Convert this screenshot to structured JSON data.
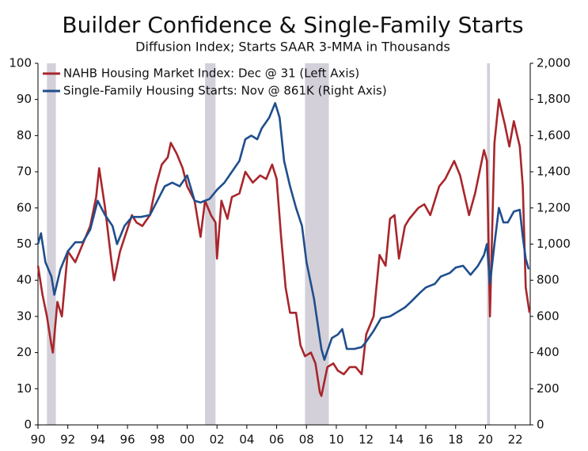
{
  "chart_data": {
    "type": "line",
    "title": "Builder Confidence & Single-Family Starts",
    "subtitle": "Diffusion Index; Starts SAAR 3-MMA in Thousands",
    "xlim": [
      1990,
      2023
    ],
    "xticks": [
      {
        "value": 1990,
        "label": "90"
      },
      {
        "value": 1992,
        "label": "92"
      },
      {
        "value": 1994,
        "label": "94"
      },
      {
        "value": 1996,
        "label": "96"
      },
      {
        "value": 1998,
        "label": "98"
      },
      {
        "value": 2000,
        "label": "00"
      },
      {
        "value": 2002,
        "label": "02"
      },
      {
        "value": 2004,
        "label": "04"
      },
      {
        "value": 2006,
        "label": "06"
      },
      {
        "value": 2008,
        "label": "08"
      },
      {
        "value": 2010,
        "label": "10"
      },
      {
        "value": 2012,
        "label": "12"
      },
      {
        "value": 2014,
        "label": "14"
      },
      {
        "value": 2016,
        "label": "16"
      },
      {
        "value": 2018,
        "label": "18"
      },
      {
        "value": 2020,
        "label": "20"
      },
      {
        "value": 2022,
        "label": "22"
      }
    ],
    "ylim": [
      0,
      100
    ],
    "yticks": [
      0,
      10,
      20,
      30,
      40,
      50,
      60,
      70,
      80,
      90,
      100
    ],
    "y2lim": [
      0,
      2000
    ],
    "y2ticks": [
      0,
      {
        "value": 200,
        "label": "200"
      },
      {
        "value": 400,
        "label": "400"
      },
      {
        "value": 600,
        "label": "600"
      },
      {
        "value": 800,
        "label": "800"
      },
      {
        "value": 1000,
        "label": "1,000"
      },
      {
        "value": 1200,
        "label": "1,200"
      },
      {
        "value": 1400,
        "label": "1,400"
      },
      {
        "value": 1600,
        "label": "1,600"
      },
      {
        "value": 1800,
        "label": "1,800"
      },
      {
        "value": 2000,
        "label": "2,000"
      }
    ],
    "shaded_periods": [
      {
        "start": 1990.6,
        "end": 1991.2
      },
      {
        "start": 2001.2,
        "end": 2001.9
      },
      {
        "start": 2007.9,
        "end": 2009.5
      },
      {
        "start": 2020.1,
        "end": 2020.3
      }
    ],
    "shade_color": "#d3d0da",
    "legend": "upper left",
    "series": [
      {
        "name": "NAHB Housing Market Index: Dec @ 31 (Left Axis)",
        "color": "#a8262b",
        "axis": "y",
        "x": [
          1990.0,
          1990.3,
          1990.6,
          1990.9,
          1991.0,
          1991.3,
          1991.6,
          1992.0,
          1992.5,
          1993.0,
          1993.5,
          1993.9,
          1994.1,
          1994.5,
          1994.9,
          1995.1,
          1995.5,
          1995.9,
          1996.3,
          1996.6,
          1997.0,
          1997.5,
          1997.9,
          1998.3,
          1998.7,
          1998.9,
          1999.3,
          1999.7,
          2000.0,
          2000.5,
          2000.9,
          2001.2,
          2001.6,
          2001.9,
          2002.0,
          2002.3,
          2002.7,
          2003.0,
          2003.5,
          2003.9,
          2004.4,
          2004.9,
          2005.3,
          2005.7,
          2006.0,
          2006.3,
          2006.6,
          2006.9,
          2007.3,
          2007.6,
          2007.9,
          2008.3,
          2008.6,
          2008.9,
          2009.0,
          2009.4,
          2009.8,
          2010.1,
          2010.5,
          2010.9,
          2011.3,
          2011.7,
          2012.0,
          2012.5,
          2012.9,
          2013.3,
          2013.6,
          2013.9,
          2014.2,
          2014.6,
          2014.9,
          2015.5,
          2015.9,
          2016.3,
          2016.9,
          2017.3,
          2017.9,
          2018.3,
          2018.9,
          2019.3,
          2019.9,
          2020.1,
          2020.3,
          2020.6,
          2020.9,
          2021.3,
          2021.6,
          2021.9,
          2022.3,
          2022.5,
          2022.7,
          2022.95
        ],
        "values": [
          44,
          36,
          30,
          22,
          20,
          34,
          30,
          48,
          45,
          50,
          55,
          63,
          71,
          60,
          46,
          40,
          48,
          53,
          58,
          56,
          55,
          58,
          66,
          72,
          74,
          78,
          75,
          71,
          66,
          62,
          52,
          62,
          58,
          56,
          46,
          62,
          57,
          63,
          64,
          70,
          67,
          69,
          68,
          72,
          68,
          52,
          38,
          31,
          31,
          22,
          19,
          20,
          17,
          9,
          8,
          16,
          17,
          15,
          14,
          16,
          16,
          14,
          25,
          30,
          47,
          44,
          57,
          58,
          46,
          55,
          57,
          60,
          61,
          58,
          66,
          68,
          73,
          69,
          58,
          64,
          76,
          73,
          30,
          78,
          90,
          83,
          77,
          84,
          77,
          66,
          38,
          31
        ]
      },
      {
        "name": "Single-Family Housing Starts: Nov @ 861K (Right Axis)",
        "color": "#1f4e8c",
        "axis": "y2",
        "x": [
          1990.0,
          1990.2,
          1990.5,
          1990.9,
          1991.1,
          1991.5,
          1992.0,
          1992.5,
          1993.0,
          1993.5,
          1994.0,
          1994.5,
          1995.0,
          1995.3,
          1995.8,
          1996.3,
          1996.9,
          1997.5,
          1998.0,
          1998.5,
          1999.0,
          1999.5,
          2000.0,
          2000.5,
          2000.9,
          2001.5,
          2002.0,
          2002.5,
          2003.0,
          2003.5,
          2003.9,
          2004.3,
          2004.7,
          2005.0,
          2005.5,
          2005.9,
          2006.2,
          2006.5,
          2006.9,
          2007.3,
          2007.7,
          2008.0,
          2008.5,
          2009.0,
          2009.2,
          2009.7,
          2010.1,
          2010.4,
          2010.7,
          2011.2,
          2011.7,
          2012.0,
          2012.5,
          2013.0,
          2013.6,
          2014.0,
          2014.6,
          2015.0,
          2015.6,
          2016.0,
          2016.6,
          2017.0,
          2017.6,
          2018.0,
          2018.5,
          2019.0,
          2019.5,
          2019.9,
          2020.1,
          2020.3,
          2020.6,
          2020.9,
          2021.2,
          2021.5,
          2021.9,
          2022.3,
          2022.5,
          2022.7,
          2022.9
        ],
        "values": [
          1000,
          1060,
          900,
          820,
          720,
          860,
          960,
          1010,
          1010,
          1080,
          1240,
          1160,
          1100,
          1000,
          1100,
          1150,
          1150,
          1160,
          1240,
          1320,
          1340,
          1320,
          1380,
          1240,
          1230,
          1250,
          1300,
          1340,
          1400,
          1460,
          1580,
          1600,
          1580,
          1640,
          1700,
          1780,
          1700,
          1460,
          1320,
          1200,
          1100,
          900,
          700,
          420,
          360,
          480,
          500,
          530,
          420,
          420,
          430,
          460,
          520,
          590,
          600,
          620,
          650,
          680,
          730,
          760,
          780,
          820,
          840,
          870,
          880,
          830,
          880,
          940,
          1000,
          780,
          1000,
          1200,
          1120,
          1120,
          1180,
          1190,
          1040,
          920,
          861
        ]
      }
    ]
  }
}
